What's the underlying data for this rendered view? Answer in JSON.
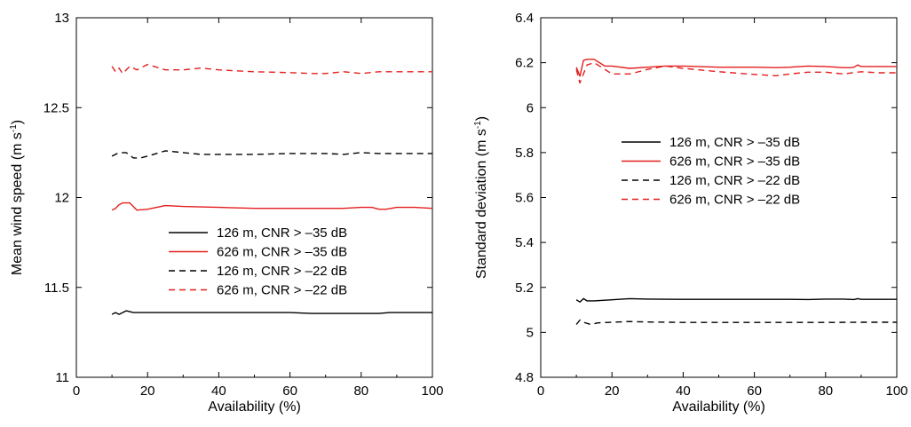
{
  "chart_data": [
    {
      "type": "line",
      "xlabel": "Availability (%)",
      "ylabel": "Mean wind speed (m s",
      "ylabel_sup": "-1",
      "ylabel_close": ")",
      "xlim": [
        0,
        100
      ],
      "ylim": [
        11,
        13
      ],
      "x_ticks": [
        "0",
        "20",
        "40",
        "60",
        "80",
        "100"
      ],
      "y_ticks": [
        "11",
        "11.5",
        "12",
        "12.5",
        "13"
      ],
      "legend_position": "center",
      "grid": false,
      "series": [
        {
          "name": "126 m, CNR > –35 dB",
          "color": "#000000",
          "dash": "solid",
          "x": [
            10,
            11,
            12,
            13,
            14,
            16,
            18,
            20,
            25,
            30,
            35,
            40,
            50,
            60,
            66,
            70,
            75,
            80,
            85,
            88,
            90,
            95,
            100
          ],
          "y": [
            11.35,
            11.36,
            11.35,
            11.36,
            11.37,
            11.36,
            11.36,
            11.36,
            11.36,
            11.36,
            11.36,
            11.36,
            11.36,
            11.36,
            11.355,
            11.355,
            11.355,
            11.355,
            11.355,
            11.36,
            11.36,
            11.36,
            11.36
          ]
        },
        {
          "name": "626 m, CNR > –35 dB",
          "color": "#e41e1e",
          "dash": "solid",
          "x": [
            10,
            11,
            12,
            13,
            15,
            17,
            20,
            25,
            30,
            40,
            50,
            60,
            70,
            75,
            80,
            83,
            85,
            87,
            90,
            95,
            100
          ],
          "y": [
            11.93,
            11.94,
            11.96,
            11.97,
            11.97,
            11.93,
            11.935,
            11.955,
            11.95,
            11.945,
            11.94,
            11.94,
            11.94,
            11.94,
            11.945,
            11.945,
            11.935,
            11.935,
            11.945,
            11.945,
            11.94
          ]
        },
        {
          "name": "126 m, CNR > –22 dB",
          "color": "#000000",
          "dash": "dashed",
          "x": [
            10,
            12,
            14,
            16,
            18,
            20,
            25,
            30,
            35,
            40,
            50,
            60,
            66,
            70,
            75,
            80,
            85,
            90,
            95,
            100
          ],
          "y": [
            12.23,
            12.25,
            12.25,
            12.22,
            12.22,
            12.23,
            12.26,
            12.25,
            12.24,
            12.24,
            12.24,
            12.245,
            12.245,
            12.245,
            12.24,
            12.25,
            12.245,
            12.245,
            12.245,
            12.245
          ]
        },
        {
          "name": "626 m, CNR > –22 dB",
          "color": "#e41e1e",
          "dash": "dashed",
          "x": [
            10,
            11,
            12,
            13,
            15,
            17,
            20,
            25,
            30,
            35,
            40,
            50,
            60,
            66,
            70,
            75,
            80,
            85,
            90,
            95,
            100
          ],
          "y": [
            12.73,
            12.7,
            12.72,
            12.69,
            12.73,
            12.71,
            12.74,
            12.71,
            12.71,
            12.72,
            12.71,
            12.7,
            12.695,
            12.69,
            12.69,
            12.7,
            12.69,
            12.7,
            12.7,
            12.7,
            12.7
          ]
        }
      ]
    },
    {
      "type": "line",
      "xlabel": "Availability (%)",
      "ylabel": "Standard deviation (m s",
      "ylabel_sup": "-1",
      "ylabel_close": ")",
      "xlim": [
        0,
        100
      ],
      "ylim": [
        4.8,
        6.4
      ],
      "x_ticks": [
        "0",
        "20",
        "40",
        "60",
        "80",
        "100"
      ],
      "y_ticks": [
        "4.8",
        "5",
        "5.2",
        "5.4",
        "5.6",
        "5.8",
        "6",
        "6.2",
        "6.4"
      ],
      "legend_position": "center-right",
      "grid": false,
      "series": [
        {
          "name": "126 m, CNR > –35 dB",
          "color": "#000000",
          "dash": "solid",
          "x": [
            10,
            11,
            12,
            13,
            15,
            20,
            25,
            30,
            40,
            50,
            60,
            70,
            75,
            80,
            85,
            88,
            89,
            90,
            95,
            100
          ],
          "y": [
            5.145,
            5.135,
            5.15,
            5.14,
            5.14,
            5.145,
            5.15,
            5.148,
            5.147,
            5.147,
            5.147,
            5.147,
            5.146,
            5.148,
            5.148,
            5.146,
            5.15,
            5.147,
            5.147,
            5.147
          ]
        },
        {
          "name": "626 m, CNR > –35 dB",
          "color": "#e41e1e",
          "dash": "solid",
          "x": [
            10,
            11,
            12,
            13,
            15,
            18,
            20,
            25,
            30,
            35,
            40,
            50,
            60,
            66,
            70,
            75,
            80,
            85,
            87,
            88,
            89,
            90,
            95,
            100
          ],
          "y": [
            6.18,
            6.14,
            6.21,
            6.215,
            6.215,
            6.185,
            6.185,
            6.175,
            6.18,
            6.185,
            6.185,
            6.18,
            6.18,
            6.178,
            6.18,
            6.185,
            6.183,
            6.178,
            6.178,
            6.18,
            6.19,
            6.183,
            6.183,
            6.183
          ]
        },
        {
          "name": "126 m, CNR > –22 dB",
          "color": "#000000",
          "dash": "dashed",
          "x": [
            10,
            11,
            12,
            14,
            16,
            20,
            25,
            30,
            40,
            50,
            60,
            70,
            80,
            90,
            100
          ],
          "y": [
            5.035,
            5.055,
            5.045,
            5.035,
            5.042,
            5.045,
            5.048,
            5.046,
            5.044,
            5.044,
            5.044,
            5.044,
            5.044,
            5.045,
            5.045
          ]
        },
        {
          "name": "626 m, CNR > –22 dB",
          "color": "#e41e1e",
          "dash": "dashed",
          "x": [
            10,
            11,
            12,
            13,
            15,
            18,
            20,
            25,
            30,
            35,
            40,
            50,
            60,
            66,
            70,
            75,
            80,
            85,
            90,
            95,
            100
          ],
          "y": [
            6.17,
            6.11,
            6.15,
            6.19,
            6.2,
            6.17,
            6.15,
            6.15,
            6.17,
            6.185,
            6.175,
            6.16,
            6.148,
            6.142,
            6.15,
            6.158,
            6.158,
            6.15,
            6.16,
            6.155,
            6.155
          ]
        }
      ]
    }
  ]
}
